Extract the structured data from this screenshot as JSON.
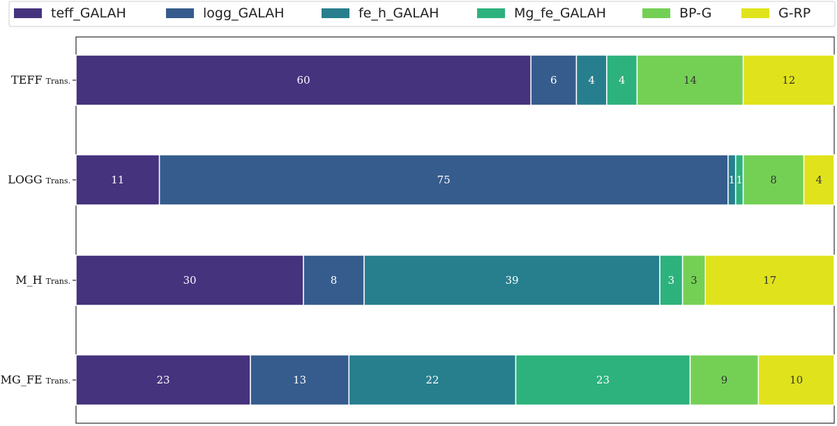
{
  "chart_data": {
    "type": "bar",
    "orientation": "horizontal",
    "stacked": true,
    "legend_position": "top",
    "xlim": [
      0,
      100
    ],
    "categories": [
      {
        "main": "TEFF",
        "sub": "Trans."
      },
      {
        "main": "LOGG",
        "sub": "Trans."
      },
      {
        "main": "M_H",
        "sub": "Trans."
      },
      {
        "main": "MG_FE",
        "sub": "Trans."
      }
    ],
    "series": [
      {
        "name": "teff_GALAH",
        "color": "#46337e",
        "label_color": "#ffffff",
        "values": [
          60,
          11,
          30,
          23
        ]
      },
      {
        "name": "logg_GALAH",
        "color": "#365c8d",
        "label_color": "#ffffff",
        "values": [
          6,
          75,
          8,
          13
        ]
      },
      {
        "name": "fe_h_GALAH",
        "color": "#277f8e",
        "label_color": "#ffffff",
        "values": [
          4,
          1,
          39,
          22
        ]
      },
      {
        "name": "Mg_fe_GALAH",
        "color": "#2db27d",
        "label_color": "#ffffff",
        "values": [
          4,
          1,
          3,
          23
        ]
      },
      {
        "name": "BP-G",
        "color": "#74d055",
        "label_color": "#333333",
        "values": [
          14,
          8,
          3,
          9
        ]
      },
      {
        "name": "G-RP",
        "color": "#e0e31b",
        "label_color": "#333333",
        "values": [
          12,
          4,
          17,
          10
        ]
      }
    ]
  }
}
